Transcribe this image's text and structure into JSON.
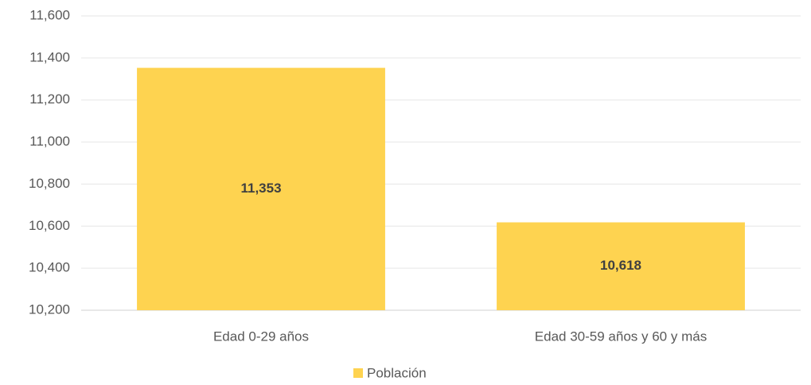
{
  "chart_data": {
    "type": "bar",
    "categories": [
      "Edad 0-29 años",
      "Edad 30-59 años y 60 y más"
    ],
    "series": [
      {
        "name": "Población",
        "color": "#fed350",
        "values": [
          11353,
          10618
        ],
        "value_labels": [
          "11,353",
          "10,618"
        ]
      }
    ],
    "ylim": [
      10200,
      11600
    ],
    "yticks": [
      {
        "value": 10200,
        "label": "10,200"
      },
      {
        "value": 10400,
        "label": "10,400"
      },
      {
        "value": 10600,
        "label": "10,600"
      },
      {
        "value": 10800,
        "label": "10,800"
      },
      {
        "value": 11000,
        "label": "11,000"
      },
      {
        "value": 11200,
        "label": "11,200"
      },
      {
        "value": 11400,
        "label": "11,400"
      },
      {
        "value": 11600,
        "label": "11,600"
      }
    ],
    "grid": true,
    "legend": "bottom"
  }
}
